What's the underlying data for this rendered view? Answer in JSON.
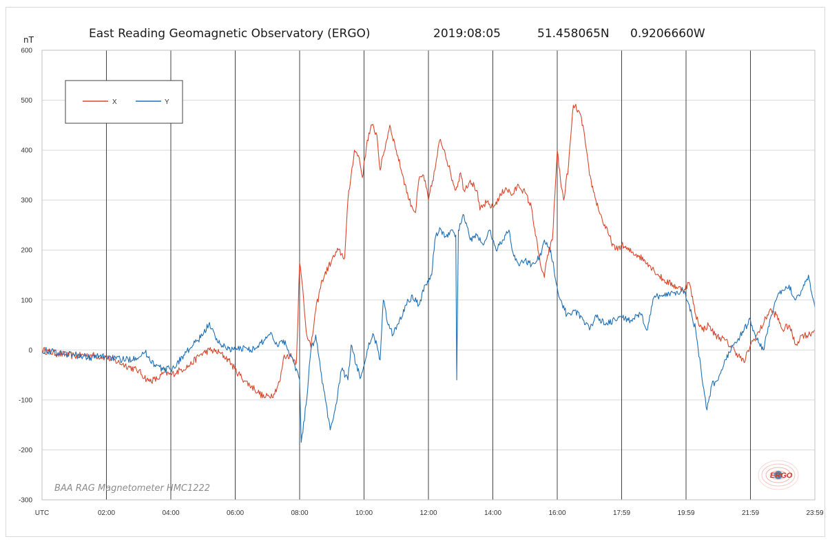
{
  "header": {
    "unit_label": "nT",
    "title": "East Reading Geomagnetic Observatory  (ERGO)",
    "date": "2019:08:05",
    "latitude": "51.458065N",
    "longitude": "0.9206660W"
  },
  "watermark": "BAA RAG Magnetometer HMC1222",
  "logo": {
    "text": "ERGO"
  },
  "colors": {
    "x": "#d9452b",
    "y": "#1f6fb4",
    "grid_major": "#404040",
    "grid_minor": "#d9d9d9"
  },
  "chart_data": {
    "type": "line",
    "title": "East Reading Geomagnetic Observatory  (ERGO)",
    "ylabel": "nT",
    "xlabel": "",
    "xlim": [
      0,
      24
    ],
    "ylim": [
      -300,
      600
    ],
    "y_ticks": [
      600,
      500,
      400,
      300,
      200,
      100,
      0,
      -100,
      -200,
      -300
    ],
    "x_ticks": [
      {
        "h": 0,
        "label": "UTC"
      },
      {
        "h": 2,
        "label": "02:00"
      },
      {
        "h": 4,
        "label": "04:00"
      },
      {
        "h": 6,
        "label": "06:00"
      },
      {
        "h": 8,
        "label": "08:00"
      },
      {
        "h": 10,
        "label": "10:00"
      },
      {
        "h": 12,
        "label": "12:00"
      },
      {
        "h": 14,
        "label": "14:00"
      },
      {
        "h": 16,
        "label": "16:00"
      },
      {
        "h": 18,
        "label": "17:59"
      },
      {
        "h": 20,
        "label": "19:59"
      },
      {
        "h": 22,
        "label": "21:59"
      },
      {
        "h": 24,
        "label": "23:59"
      }
    ],
    "legend_position": "top-left",
    "grid": true,
    "series": [
      {
        "name": "X",
        "color": "#d9452b",
        "points": [
          [
            0.0,
            0
          ],
          [
            0.5,
            -8
          ],
          [
            1.0,
            -12
          ],
          [
            1.5,
            -10
          ],
          [
            2.0,
            -15
          ],
          [
            2.5,
            -28
          ],
          [
            3.0,
            -42
          ],
          [
            3.3,
            -62
          ],
          [
            3.6,
            -58
          ],
          [
            3.8,
            -45
          ],
          [
            4.0,
            -50
          ],
          [
            4.3,
            -40
          ],
          [
            4.6,
            -30
          ],
          [
            4.9,
            -10
          ],
          [
            5.2,
            0
          ],
          [
            5.5,
            -5
          ],
          [
            5.8,
            -20
          ],
          [
            6.0,
            -40
          ],
          [
            6.3,
            -62
          ],
          [
            6.6,
            -78
          ],
          [
            6.9,
            -95
          ],
          [
            7.2,
            -88
          ],
          [
            7.4,
            -60
          ],
          [
            7.5,
            -15
          ],
          [
            7.7,
            -10
          ],
          [
            7.9,
            -25
          ],
          [
            8.0,
            175
          ],
          [
            8.1,
            120
          ],
          [
            8.2,
            40
          ],
          [
            8.35,
            5
          ],
          [
            8.5,
            80
          ],
          [
            8.7,
            140
          ],
          [
            9.0,
            180
          ],
          [
            9.2,
            200
          ],
          [
            9.4,
            185
          ],
          [
            9.5,
            300
          ],
          [
            9.6,
            350
          ],
          [
            9.7,
            400
          ],
          [
            9.85,
            385
          ],
          [
            9.95,
            345
          ],
          [
            10.1,
            420
          ],
          [
            10.25,
            450
          ],
          [
            10.4,
            430
          ],
          [
            10.5,
            360
          ],
          [
            10.6,
            390
          ],
          [
            10.8,
            450
          ],
          [
            11.0,
            400
          ],
          [
            11.2,
            350
          ],
          [
            11.4,
            300
          ],
          [
            11.6,
            275
          ],
          [
            11.7,
            340
          ],
          [
            11.85,
            350
          ],
          [
            12.0,
            300
          ],
          [
            12.2,
            360
          ],
          [
            12.35,
            420
          ],
          [
            12.5,
            400
          ],
          [
            12.7,
            350
          ],
          [
            12.85,
            320
          ],
          [
            13.0,
            355
          ],
          [
            13.1,
            320
          ],
          [
            13.3,
            340
          ],
          [
            13.5,
            320
          ],
          [
            13.6,
            280
          ],
          [
            13.8,
            295
          ],
          [
            14.0,
            285
          ],
          [
            14.2,
            305
          ],
          [
            14.4,
            325
          ],
          [
            14.6,
            310
          ],
          [
            14.8,
            330
          ],
          [
            15.0,
            315
          ],
          [
            15.2,
            285
          ],
          [
            15.4,
            200
          ],
          [
            15.5,
            165
          ],
          [
            15.6,
            145
          ],
          [
            15.7,
            190
          ],
          [
            15.85,
            220
          ],
          [
            16.0,
            400
          ],
          [
            16.1,
            340
          ],
          [
            16.2,
            300
          ],
          [
            16.35,
            370
          ],
          [
            16.5,
            490
          ],
          [
            16.65,
            480
          ],
          [
            16.8,
            450
          ],
          [
            17.0,
            350
          ],
          [
            17.2,
            300
          ],
          [
            17.4,
            260
          ],
          [
            17.6,
            230
          ],
          [
            17.8,
            200
          ],
          [
            18.0,
            210
          ],
          [
            18.2,
            200
          ],
          [
            18.5,
            190
          ],
          [
            18.8,
            175
          ],
          [
            19.0,
            160
          ],
          [
            19.3,
            140
          ],
          [
            19.6,
            130
          ],
          [
            19.9,
            120
          ],
          [
            20.1,
            135
          ],
          [
            20.3,
            70
          ],
          [
            20.5,
            40
          ],
          [
            20.7,
            50
          ],
          [
            20.9,
            30
          ],
          [
            21.2,
            20
          ],
          [
            21.5,
            0
          ],
          [
            21.8,
            -25
          ],
          [
            22.0,
            10
          ],
          [
            22.3,
            40
          ],
          [
            22.6,
            80
          ],
          [
            22.8,
            70
          ],
          [
            23.0,
            40
          ],
          [
            23.2,
            50
          ],
          [
            23.4,
            10
          ],
          [
            23.6,
            30
          ],
          [
            23.8,
            30
          ],
          [
            24.0,
            40
          ]
        ]
      },
      {
        "name": "Y",
        "color": "#1f6fb4",
        "points": [
          [
            0.0,
            0
          ],
          [
            0.5,
            -5
          ],
          [
            1.0,
            -10
          ],
          [
            1.5,
            -15
          ],
          [
            2.0,
            -12
          ],
          [
            2.3,
            -18
          ],
          [
            2.6,
            -20
          ],
          [
            2.9,
            -15
          ],
          [
            3.2,
            -5
          ],
          [
            3.5,
            -30
          ],
          [
            3.8,
            -40
          ],
          [
            4.1,
            -35
          ],
          [
            4.4,
            -10
          ],
          [
            4.7,
            10
          ],
          [
            5.0,
            30
          ],
          [
            5.2,
            55
          ],
          [
            5.4,
            20
          ],
          [
            5.7,
            5
          ],
          [
            6.0,
            0
          ],
          [
            6.3,
            5
          ],
          [
            6.6,
            0
          ],
          [
            6.9,
            20
          ],
          [
            7.1,
            35
          ],
          [
            7.3,
            10
          ],
          [
            7.5,
            20
          ],
          [
            7.8,
            -20
          ],
          [
            8.0,
            -60
          ],
          [
            8.05,
            -185
          ],
          [
            8.2,
            -110
          ],
          [
            8.35,
            0
          ],
          [
            8.5,
            30
          ],
          [
            8.65,
            -40
          ],
          [
            8.8,
            -100
          ],
          [
            8.95,
            -160
          ],
          [
            9.1,
            -120
          ],
          [
            9.3,
            -40
          ],
          [
            9.5,
            -60
          ],
          [
            9.6,
            10
          ],
          [
            9.75,
            -30
          ],
          [
            9.9,
            -55
          ],
          [
            10.1,
            0
          ],
          [
            10.3,
            30
          ],
          [
            10.4,
            10
          ],
          [
            10.5,
            -20
          ],
          [
            10.6,
            100
          ],
          [
            10.75,
            50
          ],
          [
            10.9,
            30
          ],
          [
            11.1,
            60
          ],
          [
            11.3,
            90
          ],
          [
            11.5,
            110
          ],
          [
            11.7,
            90
          ],
          [
            11.9,
            130
          ],
          [
            12.1,
            150
          ],
          [
            12.2,
            220
          ],
          [
            12.35,
            245
          ],
          [
            12.5,
            225
          ],
          [
            12.7,
            240
          ],
          [
            12.85,
            230
          ],
          [
            12.88,
            -60
          ],
          [
            12.93,
            240
          ],
          [
            13.1,
            270
          ],
          [
            13.3,
            220
          ],
          [
            13.5,
            230
          ],
          [
            13.7,
            210
          ],
          [
            13.9,
            240
          ],
          [
            14.1,
            200
          ],
          [
            14.3,
            220
          ],
          [
            14.5,
            240
          ],
          [
            14.6,
            200
          ],
          [
            14.8,
            170
          ],
          [
            15.0,
            180
          ],
          [
            15.2,
            170
          ],
          [
            15.5,
            190
          ],
          [
            15.6,
            220
          ],
          [
            15.8,
            200
          ],
          [
            15.95,
            140
          ],
          [
            16.1,
            100
          ],
          [
            16.3,
            70
          ],
          [
            16.5,
            80
          ],
          [
            16.8,
            60
          ],
          [
            17.0,
            40
          ],
          [
            17.2,
            70
          ],
          [
            17.5,
            50
          ],
          [
            17.8,
            60
          ],
          [
            18.0,
            65
          ],
          [
            18.3,
            60
          ],
          [
            18.6,
            70
          ],
          [
            18.8,
            40
          ],
          [
            19.0,
            105
          ],
          [
            19.3,
            110
          ],
          [
            19.6,
            115
          ],
          [
            19.9,
            120
          ],
          [
            20.1,
            90
          ],
          [
            20.3,
            40
          ],
          [
            20.5,
            -60
          ],
          [
            20.65,
            -120
          ],
          [
            20.8,
            -70
          ],
          [
            21.0,
            -60
          ],
          [
            21.2,
            -20
          ],
          [
            21.4,
            0
          ],
          [
            21.6,
            20
          ],
          [
            21.8,
            40
          ],
          [
            22.0,
            60
          ],
          [
            22.2,
            20
          ],
          [
            22.4,
            0
          ],
          [
            22.6,
            60
          ],
          [
            22.8,
            100
          ],
          [
            23.0,
            120
          ],
          [
            23.2,
            130
          ],
          [
            23.4,
            100
          ],
          [
            23.6,
            120
          ],
          [
            23.8,
            150
          ],
          [
            24.0,
            85
          ]
        ]
      }
    ]
  }
}
